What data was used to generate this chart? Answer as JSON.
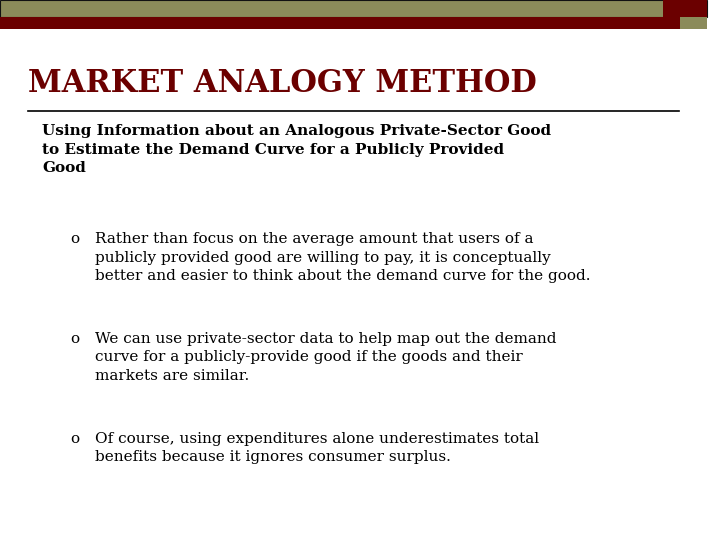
{
  "title": "MARKET ANALOGY METHOD",
  "title_color": "#6B0000",
  "title_fontsize": 22,
  "title_font": "serif",
  "title_bold": true,
  "header_bar1_color": "#8B8B5A",
  "header_bar2_color": "#6B0000",
  "accent_box_color": "#8B8B5A",
  "accent_box2_color": "#6B0000",
  "bg_color": "#FFFFFF",
  "divider_color": "#000000",
  "subtitle": "Using Information about an Analogous Private-Sector Good\nto Estimate the Demand Curve for a Publicly Provided\nGood",
  "subtitle_bold": true,
  "subtitle_fontsize": 11,
  "body_fontsize": 11,
  "bullet_char": "o",
  "bullets": [
    "Rather than focus on the average amount that users of a\npublicly provided good are willing to pay, it is conceptually\nbetter and easier to think about the demand curve for the good.",
    "We can use private-sector data to help map out the demand\ncurve for a publicly-provide good if the goods and their\nmarkets are similar.",
    "Of course, using expenditures alone underestimates total\nbenefits because it ignores consumer surplus."
  ],
  "text_color": "#000000",
  "font_family": "serif"
}
